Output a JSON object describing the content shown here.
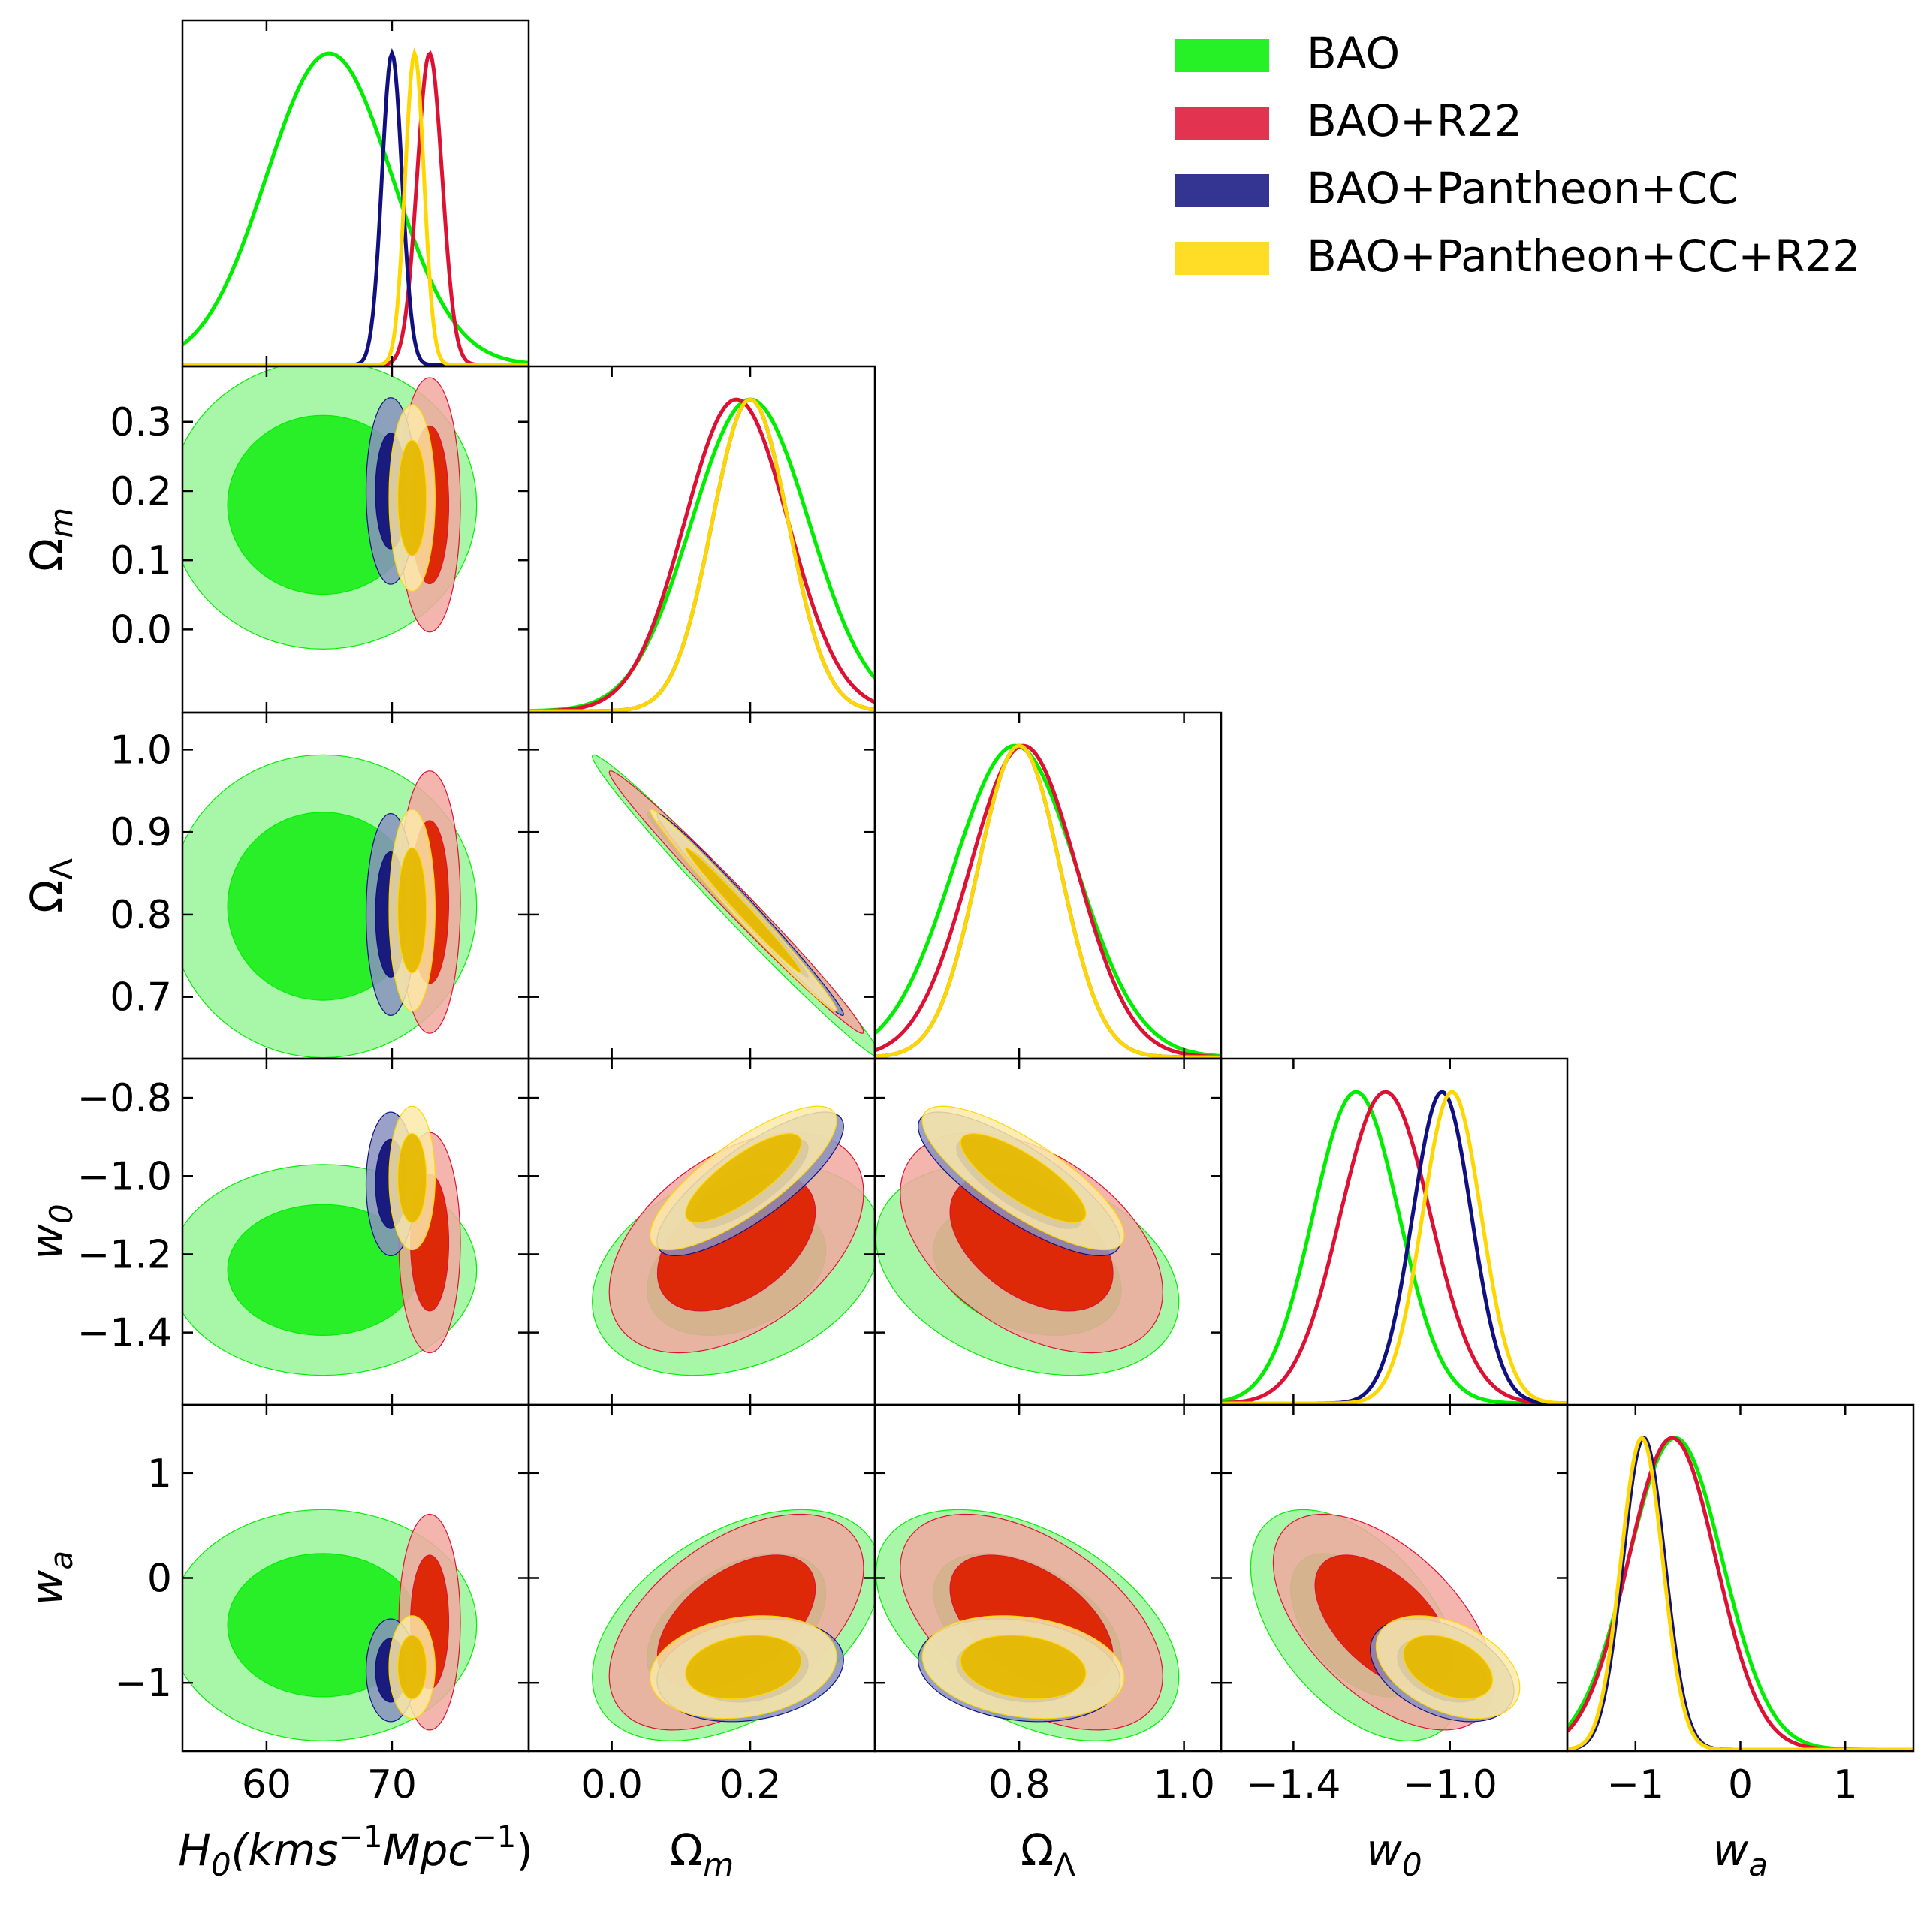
{
  "chart_data": {
    "type": "triangle",
    "params": [
      "H0",
      "Om",
      "OL",
      "w0",
      "wa"
    ],
    "param_labels": {
      "H0": {
        "sym": "H",
        "sub": "0",
        "unit": "(kms",
        "sup": "−1",
        "unit2": "Mpc",
        "sup2": "−1",
        "close": ")"
      },
      "Om": {
        "sym": "Ω",
        "sub": "m"
      },
      "OL": {
        "sym": "Ω",
        "sub": "Λ"
      },
      "w0": {
        "sym": "w",
        "sub": "0"
      },
      "wa": {
        "sym": "w",
        "sub": "a"
      }
    },
    "ranges": {
      "H0": [
        53.3,
        80.9
      ],
      "Om": [
        -0.12,
        0.38
      ],
      "OL": [
        0.625,
        1.045
      ],
      "w0": [
        -1.585,
        -0.7
      ],
      "wa": [
        -1.65,
        1.65
      ]
    },
    "ticks": {
      "H0": [
        60,
        70
      ],
      "Om": [
        0.0,
        0.2
      ],
      "OL": [
        0.8,
        1.0
      ],
      "w0": [
        -1.4,
        -1.0
      ],
      "wa": [
        -1,
        0,
        1
      ]
    },
    "tick_labels_x": {
      "H0": [
        "60",
        "70"
      ],
      "Om": [
        "0.0",
        "0.2"
      ],
      "OL": [
        "0.8",
        "1.0"
      ],
      "w0": [
        "−1.4",
        "−1.0"
      ],
      "wa": [
        "−1",
        "0",
        "1"
      ]
    },
    "ticks_y": {
      "Om": [
        0.0,
        0.1,
        0.2,
        0.3
      ],
      "OL": [
        0.7,
        0.8,
        0.9,
        1.0
      ],
      "w0": [
        -1.4,
        -1.2,
        -1.0,
        -0.8
      ],
      "wa": [
        -1,
        0,
        1
      ]
    },
    "tick_labels_y": {
      "Om": [
        "0.0",
        "0.1",
        "0.2",
        "0.3"
      ],
      "OL": [
        "0.7",
        "0.8",
        "0.9",
        "1.0"
      ],
      "w0": [
        "−1.4",
        "−1.2",
        "−1.0",
        "−0.8"
      ],
      "wa": [
        "−1",
        "0",
        "1"
      ]
    },
    "series": [
      {
        "name": "BAO",
        "color": "#00ee00",
        "fill_outer": "#99f599",
        "fill_inner": "#22ee22",
        "mean": {
          "H0": 64.5,
          "Om": 0.18,
          "OL": 0.81,
          "w0": -1.24,
          "wa": -0.45
        },
        "sigma": {
          "H0": 5.0,
          "Om": 0.085,
          "OL": 0.075,
          "w0": 0.11,
          "wa": 0.45
        },
        "peak": {
          "H0": 65.0,
          "Om": 0.2,
          "OL": 0.795,
          "w0": -1.24,
          "wa": -0.62
        },
        "corr": {
          "Om-OL": -0.99,
          "Om-w0": 0.3,
          "OL-w0": -0.3,
          "Om-wa": 0.45,
          "OL-wa": -0.45,
          "w0-wa": -0.5
        }
      },
      {
        "name": "BAO+R22",
        "color": "#dd1133",
        "fill_outer": "#f2a8a0",
        "fill_inner": "#dd2200",
        "mean": {
          "H0": 73.0,
          "Om": 0.18,
          "OL": 0.815,
          "w0": -1.17,
          "wa": -0.42
        },
        "sigma": {
          "H0": 1.0,
          "Om": 0.075,
          "OL": 0.065,
          "w0": 0.115,
          "wa": 0.42
        },
        "peak": {
          "H0": 73.0,
          "Om": 0.18,
          "OL": 0.805,
          "w0": -1.165,
          "wa": -0.65
        },
        "corr": {
          "Om-OL": -0.99,
          "Om-w0": 0.45,
          "OL-w0": -0.45,
          "Om-wa": 0.5,
          "OL-wa": -0.5,
          "w0-wa": -0.55
        }
      },
      {
        "name": "BAO+Pantheon+CC",
        "color": "#101080",
        "fill_outer": "#8890c0",
        "fill_inner": "#14147a",
        "mean": {
          "H0": 69.9,
          "Om": 0.2,
          "OL": 0.8,
          "w0": -1.02,
          "wa": -0.88
        },
        "sigma": {
          "H0": 0.8,
          "Om": 0.055,
          "OL": 0.05,
          "w0": 0.075,
          "wa": 0.2
        },
        "peak": {
          "H0": 70.0,
          "Om": 0.2,
          "OL": 0.8,
          "w0": -1.02,
          "wa": -0.92
        },
        "corr": {
          "Om-OL": -0.99,
          "Om-w0": 0.8,
          "OL-w0": -0.8,
          "Om-wa": 0.2,
          "OL-wa": -0.2,
          "w0-wa": -0.4
        }
      },
      {
        "name": "BAO+Pantheon+CC+R22",
        "color": "#ffd700",
        "fill_outer": "#fbe9a8",
        "fill_inner": "#e6b800",
        "mean": {
          "H0": 71.6,
          "Om": 0.19,
          "OL": 0.805,
          "w0": -1.005,
          "wa": -0.85
        },
        "sigma": {
          "H0": 0.75,
          "Om": 0.055,
          "OL": 0.05,
          "w0": 0.075,
          "wa": 0.2
        },
        "peak": {
          "H0": 71.8,
          "Om": 0.2,
          "OL": 0.8,
          "w0": -0.995,
          "wa": -0.94
        },
        "corr": {
          "Om-OL": -0.99,
          "Om-w0": 0.8,
          "OL-w0": -0.8,
          "Om-wa": 0.2,
          "OL-wa": -0.2,
          "w0-wa": -0.4
        }
      }
    ],
    "legend": {
      "position": "top-right",
      "entries": [
        "BAO",
        "BAO+R22",
        "BAO+Pantheon+CC",
        "BAO+Pantheon+CC+R22"
      ]
    }
  }
}
